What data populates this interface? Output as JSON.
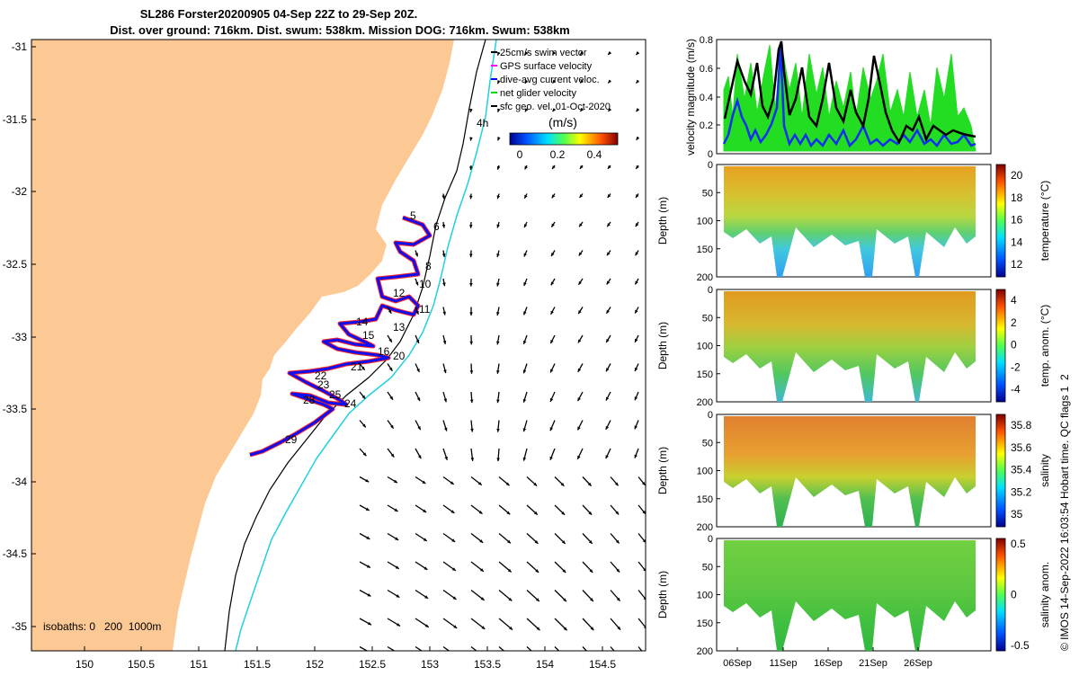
{
  "title": {
    "line1": "SL286 Forster20200905 04-Sep 22Z to 29-Sep 20Z.",
    "line2": "Dist. over ground: 716km. Dist. swum: 538km. Mission DOG: 716km. Swum: 538km"
  },
  "map": {
    "lon_ticks": [
      "150",
      "150.5",
      "151",
      "151.5",
      "152",
      "152.5",
      "153",
      "153.5",
      "154",
      "154.5"
    ],
    "lat_ticks": [
      "-31",
      "-31.5",
      "-32",
      "-32.5",
      "-33",
      "-33.5",
      "-34",
      "-34.5",
      "-35"
    ],
    "legend": [
      {
        "label": "25cm/s swim vector",
        "color": "#000000"
      },
      {
        "label": "GPS surface velocity",
        "color": "#ff00ff"
      },
      {
        "label": "dive-avg current veloc.",
        "color": "#0000ff"
      },
      {
        "label": "net glider velocity",
        "color": "#00dd00"
      },
      {
        "label": "sfc geo. vel. 01-Oct-2020",
        "color": "#000000"
      }
    ],
    "colorbar": {
      "title": "(m/s)",
      "ticks": [
        "0",
        "0.2",
        "0.4"
      ]
    },
    "isobaths_label": "isobaths: 0   200  1000m",
    "isobath_4h_label": "4h",
    "day_labels": [
      {
        "text": "5"
      },
      {
        "text": "6"
      },
      {
        "text": "8"
      },
      {
        "text": "10"
      },
      {
        "text": "11"
      },
      {
        "text": "12"
      },
      {
        "text": "13"
      },
      {
        "text": "14"
      },
      {
        "text": "15"
      },
      {
        "text": "16"
      },
      {
        "text": "20"
      },
      {
        "text": "21"
      },
      {
        "text": "22"
      },
      {
        "text": "23"
      },
      {
        "text": "24"
      },
      {
        "text": "25"
      },
      {
        "text": "28"
      },
      {
        "text": "29"
      }
    ],
    "land_color": "#fcc995"
  },
  "velocity_panel": {
    "ylabel": "velocity magnitude (m/s)",
    "yticks": [
      "0",
      "0.2",
      "0.4",
      "0.6",
      "0.8"
    ]
  },
  "depth_panels": [
    {
      "name": "temperature",
      "cbar_label": "temperature (°C)",
      "cbar_ticks": [
        "12",
        "14",
        "16",
        "18",
        "20"
      ]
    },
    {
      "name": "temp-anom",
      "cbar_label": "temp. anom. (°C)",
      "cbar_ticks": [
        "-4",
        "-2",
        "0",
        "2",
        "4"
      ]
    },
    {
      "name": "salinity",
      "cbar_label": "salinity",
      "cbar_ticks": [
        "35",
        "35.2",
        "35.4",
        "35.6",
        "35.8"
      ]
    },
    {
      "name": "salinity-anom",
      "cbar_label": "salinity anom.",
      "cbar_ticks": [
        "-0.5",
        "0",
        "0.5"
      ]
    }
  ],
  "depth_axis": {
    "ylabel": "Depth (m)",
    "ticks": [
      "0",
      "50",
      "100",
      "150",
      "200"
    ]
  },
  "time_ticks": [
    "06Sep",
    "11Sep",
    "16Sep",
    "21Sep",
    "26Sep"
  ],
  "footer": "© IMOS 14-Sep-2022 16:03:54 Hobart time. QC flags 1  2"
}
